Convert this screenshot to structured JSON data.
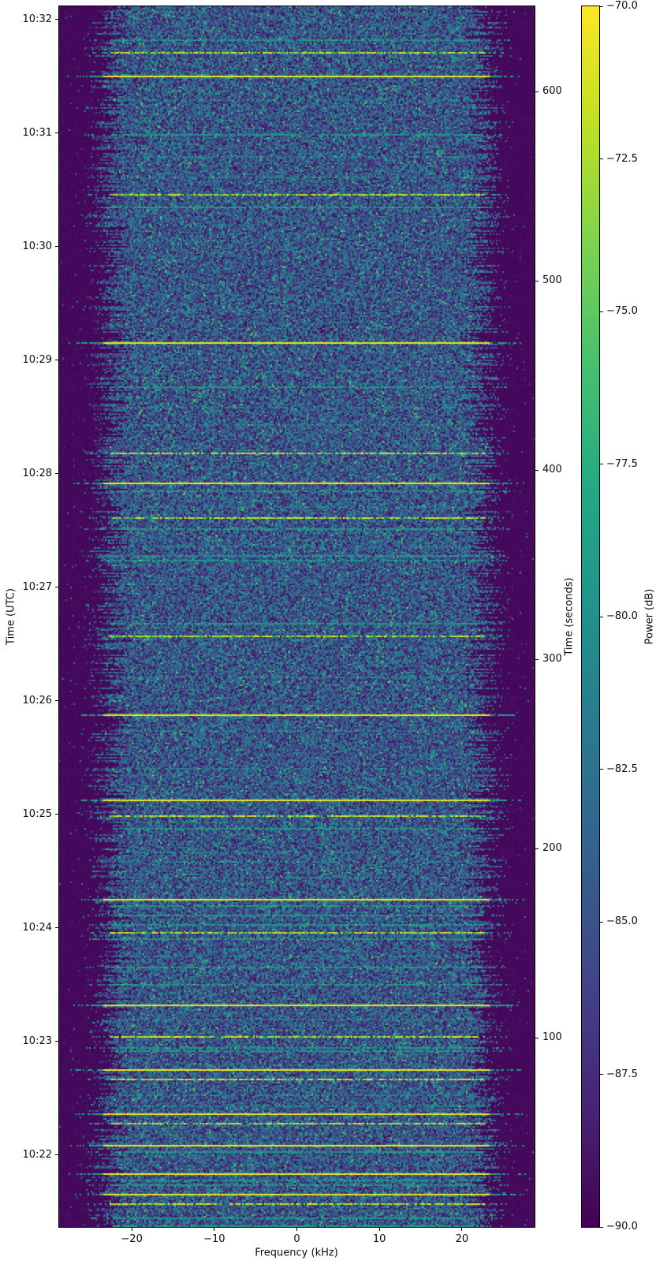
{
  "chart_data": {
    "type": "heatmap",
    "title": "",
    "colormap": "viridis",
    "xlabel": "Frequency (kHz)",
    "xlim": [
      -28.8,
      28.8
    ],
    "x_ticks": [
      {
        "khz": -20,
        "label": "−20"
      },
      {
        "khz": -10,
        "label": "−10"
      },
      {
        "khz": 0,
        "label": "0"
      },
      {
        "khz": 10,
        "label": "10"
      },
      {
        "khz": 20,
        "label": "20"
      }
    ],
    "left_axis": {
      "label": "Time (UTC)",
      "ticks": [
        {
          "t_s": 38,
          "label": "10:22"
        },
        {
          "t_s": 98,
          "label": "10:23"
        },
        {
          "t_s": 158,
          "label": "10:24"
        },
        {
          "t_s": 218,
          "label": "10:25"
        },
        {
          "t_s": 278,
          "label": "10:26"
        },
        {
          "t_s": 338,
          "label": "10:27"
        },
        {
          "t_s": 398,
          "label": "10:28"
        },
        {
          "t_s": 458,
          "label": "10:29"
        },
        {
          "t_s": 518,
          "label": "10:30"
        },
        {
          "t_s": 578,
          "label": "10:31"
        },
        {
          "t_s": 638,
          "label": "10:32"
        }
      ]
    },
    "right_axis": {
      "label": "Time (seconds)",
      "range": [
        0,
        645
      ],
      "ticks": [
        {
          "t_s": 100,
          "label": "100"
        },
        {
          "t_s": 200,
          "label": "200"
        },
        {
          "t_s": 300,
          "label": "300"
        },
        {
          "t_s": 400,
          "label": "400"
        },
        {
          "t_s": 500,
          "label": "500"
        },
        {
          "t_s": 600,
          "label": "600"
        }
      ]
    },
    "colorbar": {
      "label": "Power (dB)",
      "range": [
        -90,
        -70
      ],
      "ticks": [
        {
          "db": -70.0,
          "label": "−70.0"
        },
        {
          "db": -72.5,
          "label": "−72.5"
        },
        {
          "db": -75.0,
          "label": "−75.0"
        },
        {
          "db": -77.5,
          "label": "−77.5"
        },
        {
          "db": -80.0,
          "label": "−80.0"
        },
        {
          "db": -82.5,
          "label": "−82.5"
        },
        {
          "db": -85.0,
          "label": "−85.0"
        },
        {
          "db": -87.5,
          "label": "−87.5"
        },
        {
          "db": -90.0,
          "label": "−90.0"
        }
      ]
    },
    "noise_band_khz": [
      -23.5,
      23.5
    ],
    "noise_floor_db": -87,
    "signal_lines": [
      {
        "t_s": 627,
        "color": "teal",
        "strength": "medium"
      },
      {
        "t_s": 621,
        "color": "yellow",
        "strength": "medium"
      },
      {
        "t_s": 608,
        "color": "yellow",
        "strength": "bright"
      },
      {
        "t_s": 596,
        "color": "teal",
        "strength": "faint"
      },
      {
        "t_s": 577,
        "color": "teal",
        "strength": "medium"
      },
      {
        "t_s": 566,
        "color": "teal",
        "strength": "faint"
      },
      {
        "t_s": 555,
        "color": "teal",
        "strength": "faint"
      },
      {
        "t_s": 546,
        "color": "yellow",
        "strength": "medium"
      },
      {
        "t_s": 539,
        "color": "teal",
        "strength": "medium"
      },
      {
        "t_s": 467,
        "color": "yellow",
        "strength": "bright"
      },
      {
        "t_s": 452,
        "color": "teal",
        "strength": "faint"
      },
      {
        "t_s": 444,
        "color": "teal",
        "strength": "medium"
      },
      {
        "t_s": 433,
        "color": "teal",
        "strength": "faint"
      },
      {
        "t_s": 424,
        "color": "teal",
        "strength": "faint"
      },
      {
        "t_s": 409,
        "color": "yellow",
        "strength": "medium"
      },
      {
        "t_s": 393,
        "color": "yellow",
        "strength": "bright"
      },
      {
        "t_s": 389,
        "color": "teal",
        "strength": "medium"
      },
      {
        "t_s": 381,
        "color": "teal",
        "strength": "faint"
      },
      {
        "t_s": 375,
        "color": "yellow",
        "strength": "medium"
      },
      {
        "t_s": 369,
        "color": "teal",
        "strength": "medium"
      },
      {
        "t_s": 360,
        "color": "teal",
        "strength": "faint"
      },
      {
        "t_s": 355,
        "color": "teal",
        "strength": "medium"
      },
      {
        "t_s": 352,
        "color": "teal",
        "strength": "medium"
      },
      {
        "t_s": 319,
        "color": "teal",
        "strength": "medium"
      },
      {
        "t_s": 312,
        "color": "yellow",
        "strength": "medium"
      },
      {
        "t_s": 291,
        "color": "teal",
        "strength": "faint"
      },
      {
        "t_s": 271,
        "color": "yellow",
        "strength": "bright"
      },
      {
        "t_s": 262,
        "color": "teal",
        "strength": "faint"
      },
      {
        "t_s": 242,
        "color": "teal",
        "strength": "faint"
      },
      {
        "t_s": 226,
        "color": "yellow",
        "strength": "bright"
      },
      {
        "t_s": 217,
        "color": "yellow",
        "strength": "medium"
      },
      {
        "t_s": 211,
        "color": "teal",
        "strength": "medium"
      },
      {
        "t_s": 198,
        "color": "teal",
        "strength": "faint"
      },
      {
        "t_s": 193,
        "color": "teal",
        "strength": "faint"
      },
      {
        "t_s": 185,
        "color": "teal",
        "strength": "faint"
      },
      {
        "t_s": 173,
        "color": "yellow",
        "strength": "bright"
      },
      {
        "t_s": 170,
        "color": "teal",
        "strength": "medium"
      },
      {
        "t_s": 165,
        "color": "teal",
        "strength": "medium"
      },
      {
        "t_s": 160,
        "color": "teal",
        "strength": "medium"
      },
      {
        "t_s": 156,
        "color": "yellow",
        "strength": "medium"
      },
      {
        "t_s": 152,
        "color": "teal",
        "strength": "medium"
      },
      {
        "t_s": 143,
        "color": "teal",
        "strength": "faint"
      },
      {
        "t_s": 137,
        "color": "teal",
        "strength": "medium"
      },
      {
        "t_s": 128,
        "color": "teal",
        "strength": "medium"
      },
      {
        "t_s": 117,
        "color": "yellow",
        "strength": "bright"
      },
      {
        "t_s": 110,
        "color": "teal",
        "strength": "faint"
      },
      {
        "t_s": 101,
        "color": "yellow",
        "strength": "medium"
      },
      {
        "t_s": 95,
        "color": "teal",
        "strength": "medium"
      },
      {
        "t_s": 93,
        "color": "teal",
        "strength": "medium"
      },
      {
        "t_s": 83,
        "color": "yellow",
        "strength": "bright"
      },
      {
        "t_s": 78,
        "color": "yellow",
        "strength": "medium"
      },
      {
        "t_s": 70,
        "color": "teal",
        "strength": "faint"
      },
      {
        "t_s": 64,
        "color": "teal",
        "strength": "faint"
      },
      {
        "t_s": 60,
        "color": "yellow",
        "strength": "bright"
      },
      {
        "t_s": 55,
        "color": "yellow",
        "strength": "medium"
      },
      {
        "t_s": 43,
        "color": "yellow",
        "strength": "bright"
      },
      {
        "t_s": 40,
        "color": "teal",
        "strength": "medium"
      },
      {
        "t_s": 28,
        "color": "yellow",
        "strength": "bright"
      },
      {
        "t_s": 25,
        "color": "teal",
        "strength": "medium"
      },
      {
        "t_s": 22,
        "color": "teal",
        "strength": "medium"
      },
      {
        "t_s": 17,
        "color": "yellow",
        "strength": "bright"
      },
      {
        "t_s": 12,
        "color": "yellow",
        "strength": "medium"
      },
      {
        "t_s": 5,
        "color": "teal",
        "strength": "medium"
      },
      {
        "t_s": 0.5,
        "color": "teal",
        "strength": "medium"
      }
    ]
  },
  "colors": {
    "signal_yellow": "#fde725",
    "signal_teal": "#21918c",
    "background_dark": "#440154",
    "figure_background": "#ffffff",
    "text": "#0d0d0d"
  }
}
